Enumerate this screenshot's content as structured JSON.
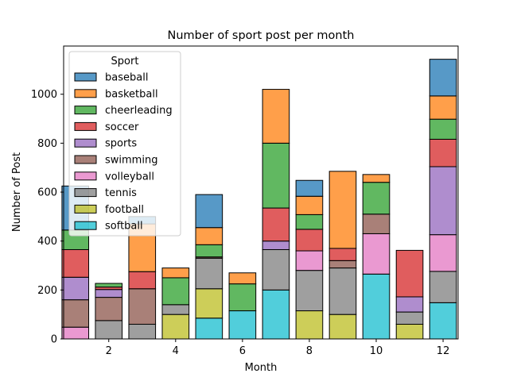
{
  "chart_data": {
    "type": "bar",
    "stacked": true,
    "title": "Number of sport post per month",
    "xlabel": "Month",
    "ylabel": "Number of Post",
    "xlim": [
      0.65,
      12.45
    ],
    "ylim": [
      0,
      1197
    ],
    "xticks": [
      2,
      4,
      6,
      8,
      10,
      12
    ],
    "yticks": [
      0,
      200,
      400,
      600,
      800,
      1000
    ],
    "grid": false,
    "legend": {
      "title": "Sport",
      "position": "upper-left"
    },
    "months": [
      1,
      2,
      3,
      4,
      5,
      6,
      7,
      8,
      9,
      10,
      11,
      12
    ],
    "series": [
      {
        "name": "softball",
        "color": "#17becf",
        "values": [
          0,
          0,
          0,
          0,
          85,
          115,
          200,
          0,
          0,
          265,
          0,
          148
        ]
      },
      {
        "name": "football",
        "color": "#bcbd22",
        "values": [
          0,
          0,
          0,
          100,
          120,
          0,
          0,
          115,
          100,
          0,
          60,
          0
        ]
      },
      {
        "name": "tennis",
        "color": "#7f7f7f",
        "values": [
          0,
          75,
          60,
          40,
          125,
          0,
          165,
          165,
          190,
          0,
          50,
          128
        ]
      },
      {
        "name": "volleyball",
        "color": "#e377c2",
        "values": [
          48,
          0,
          0,
          0,
          0,
          0,
          0,
          80,
          0,
          165,
          0,
          150
        ]
      },
      {
        "name": "swimming",
        "color": "#8c564b",
        "values": [
          112,
          95,
          145,
          0,
          5,
          0,
          0,
          0,
          30,
          80,
          0,
          0
        ]
      },
      {
        "name": "sports",
        "color": "#9467bd",
        "values": [
          92,
          32,
          0,
          0,
          0,
          0,
          35,
          0,
          0,
          0,
          62,
          278
        ]
      },
      {
        "name": "soccer",
        "color": "#d62728",
        "values": [
          113,
          10,
          70,
          0,
          0,
          0,
          135,
          88,
          50,
          0,
          190,
          112
        ]
      },
      {
        "name": "cheerleading",
        "color": "#2ca02c",
        "values": [
          80,
          15,
          0,
          110,
          50,
          110,
          265,
          60,
          0,
          130,
          0,
          82
        ]
      },
      {
        "name": "basketball",
        "color": "#ff7f0e",
        "values": [
          0,
          0,
          195,
          40,
          70,
          45,
          220,
          75,
          315,
          32,
          0,
          95
        ]
      },
      {
        "name": "baseball",
        "color": "#1f77b4",
        "values": [
          180,
          0,
          30,
          0,
          135,
          0,
          0,
          65,
          0,
          0,
          0,
          150
        ]
      }
    ],
    "legend_order": [
      "baseball",
      "basketball",
      "cheerleading",
      "soccer",
      "sports",
      "swimming",
      "volleyball",
      "tennis",
      "football",
      "softball"
    ]
  }
}
